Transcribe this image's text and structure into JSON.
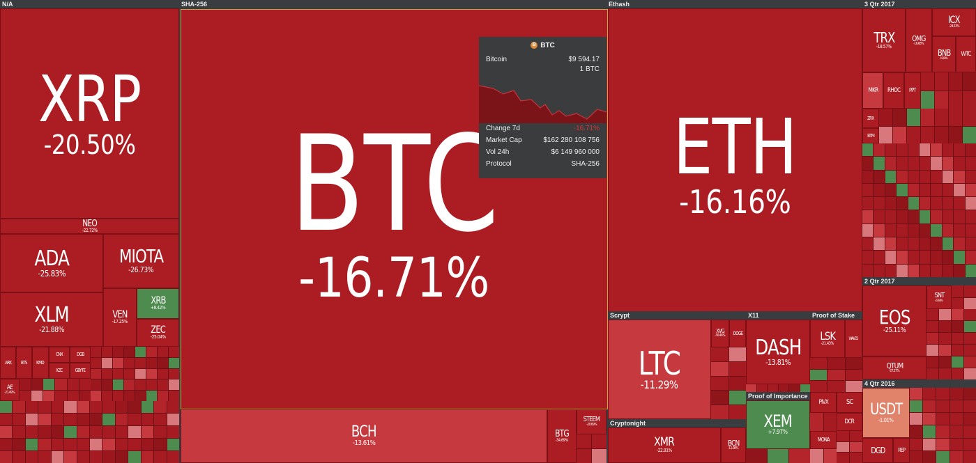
{
  "groups": {
    "na": "N/A",
    "sha256": "SHA-256",
    "ethash": "Ethash",
    "q3_2017": "3 Qtr 2017",
    "q2_2017": "2 Qtr 2017",
    "q4_2016": "4 Qtr 2016",
    "scrypt": "Scrypt",
    "x11": "X11",
    "pos": "Proof of Stake",
    "poi": "Proof of Importance",
    "cryptonight": "Cryptonight"
  },
  "coins": {
    "xrp": {
      "sym": "XRP",
      "chg": "-20.50%"
    },
    "neo": {
      "sym": "NEO",
      "chg": "-22.72%"
    },
    "ada": {
      "sym": "ADA",
      "chg": "-25.83%"
    },
    "miota": {
      "sym": "MIOTA",
      "chg": "-26.73%"
    },
    "xlm": {
      "sym": "XLM",
      "chg": "-21.88%"
    },
    "ven": {
      "sym": "VEN",
      "chg": "-17.25%"
    },
    "xrb": {
      "sym": "XRB",
      "chg": "+8.42%"
    },
    "zec": {
      "sym": "ZEC",
      "chg": "-25.04%"
    },
    "btc": {
      "sym": "BTC",
      "chg": "-16.71%"
    },
    "bch": {
      "sym": "BCH",
      "chg": "-13.61%"
    },
    "btg": {
      "sym": "BTG",
      "chg": "-34.69%"
    },
    "steem": {
      "sym": "STEEM",
      "chg": "-20.69%"
    },
    "eth": {
      "sym": "ETH",
      "chg": "-16.16%"
    },
    "ltc": {
      "sym": "LTC",
      "chg": "-11.29%"
    },
    "dash": {
      "sym": "DASH",
      "chg": "-13.81%"
    },
    "lsk": {
      "sym": "LSK",
      "chg": "-21.43%"
    },
    "xem": {
      "sym": "XEM",
      "chg": "+7.97%"
    },
    "xmr": {
      "sym": "XMR",
      "chg": "-22.91%"
    },
    "bcn": {
      "sym": "BCN",
      "chg": "-11.08%"
    },
    "trx": {
      "sym": "TRX",
      "chg": "-18.57%"
    },
    "omg": {
      "sym": "OMG",
      "chg": "-16.68%"
    },
    "icx": {
      "sym": "ICX",
      "chg": "-24.53%"
    },
    "bnb": {
      "sym": "BNB",
      "chg": "-19.69%"
    },
    "wtc": {
      "sym": "WTC",
      "chg": ""
    },
    "eos": {
      "sym": "EOS",
      "chg": "-25.11%"
    },
    "qtum": {
      "sym": "QTUM",
      "chg": "-27.27%"
    },
    "snt": {
      "sym": "SNT",
      "chg": "-23.68%"
    },
    "usdt": {
      "sym": "USDT",
      "chg": "-1.01%"
    },
    "dgd": {
      "sym": "DGD",
      "chg": ""
    },
    "rep": {
      "sym": "REP",
      "chg": ""
    },
    "mkr": {
      "sym": "MKR",
      "chg": ""
    },
    "rhoc": {
      "sym": "RHOC",
      "chg": ""
    },
    "ppt": {
      "sym": "PPT",
      "chg": ""
    },
    "xvg": {
      "sym": "XVG",
      "chg": "-30.46%"
    },
    "doge": {
      "sym": "DOGE",
      "chg": ""
    },
    "pivx": {
      "sym": "PIVX",
      "chg": ""
    },
    "sc": {
      "sym": "SC",
      "chg": ""
    },
    "dcr": {
      "sym": "DCR",
      "chg": ""
    },
    "mona": {
      "sym": "MONA",
      "chg": ""
    },
    "waves": {
      "sym": "WAVES",
      "chg": ""
    },
    "ae": {
      "sym": "AE",
      "chg": "-21.49%"
    },
    "ark": {
      "sym": "ARK",
      "chg": ""
    },
    "bts": {
      "sym": "BTS",
      "chg": ""
    },
    "kmd": {
      "sym": "KMD",
      "chg": ""
    },
    "cnx": {
      "sym": "CNX",
      "chg": ""
    },
    "dgb": {
      "sym": "DGB",
      "chg": ""
    },
    "xzc": {
      "sym": "XZC",
      "chg": ""
    },
    "gbyte": {
      "sym": "GBYTE",
      "chg": ""
    },
    "zrx": {
      "sym": "ZRX",
      "chg": ""
    },
    "btm": {
      "sym": "BTM",
      "chg": ""
    }
  },
  "tooltip": {
    "coin": "BTC",
    "icon": "bitcoin-icon",
    "name": "Bitcoin",
    "price": "$9 594.17",
    "unit": "1 BTC",
    "change_label": "Change 7d",
    "change_value": "-16.71%",
    "mcap_label": "Market Cap",
    "mcap_value": "$162 280 108 756",
    "vol_label": "Vol 24h",
    "vol_value": "$6 149 960 000",
    "protocol_label": "Protocol",
    "protocol_value": "SHA-256"
  },
  "colors": {
    "deep_red": "#ab1d23",
    "light_red": "#c63a3f",
    "green": "#4d8b4f",
    "orange": "#e0836a",
    "background": "#3a3d40"
  }
}
